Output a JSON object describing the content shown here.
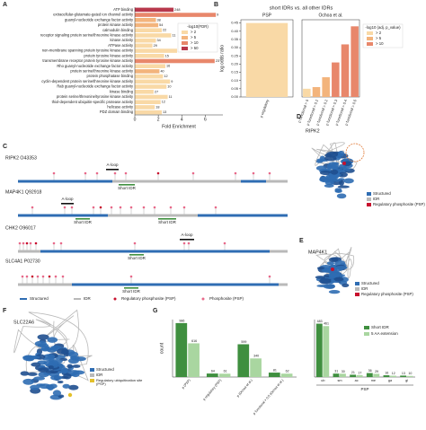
{
  "panel_labels": [
    "A",
    "B",
    "C",
    "D",
    "E",
    "F",
    "G"
  ],
  "chart_data": [
    {
      "type": "barh",
      "xlabel": "Fold Enrichment",
      "categories": [
        "ATP binding",
        "extracellular-glutamate-gated ion channel activity",
        "guanyl-nucleotide exchange factor activity",
        "protein kinase activity",
        "calmodulin binding",
        "receptor signaling protein serine/threonine kinase activity",
        "kinase activity",
        "ATPase activity",
        "non-membrane spanning protein tyrosine kinase activity",
        "protein tyrosine kinase activity",
        "transmembrane receptor protein tyrosine kinase activity",
        "Rho guanyl-nucleotide exchange factor activity",
        "protein serine/threonine kinase activity",
        "protein phosphatase binding",
        "cyclin-dependent protein serine/threonine kinase activity",
        "Rab guanyl-nucleotide exchange factor activity",
        "kinase binding",
        "protein serine/threonine/tyrosine kinase activity",
        "thiol-dependent ubiquitin-specific protease activity",
        "helicase activity",
        "PDZ domain binding"
      ],
      "values": [
        3.3,
        6.9,
        1.8,
        2.0,
        2.3,
        3.1,
        1.8,
        1.5,
        3.6,
        2.5,
        6.8,
        2.6,
        2.1,
        2.4,
        3.0,
        2.7,
        1.6,
        2.8,
        2.2,
        1.7,
        2.3
      ],
      "counts": [
        248,
        9,
        38,
        54,
        22,
        11,
        34,
        29,
        9,
        15,
        23,
        16,
        40,
        12,
        9,
        10,
        27,
        11,
        12,
        18,
        13
      ],
      "colors": [
        "#b8384c",
        "#e8876b",
        "#f3b47c",
        "#f3b47c",
        "#f9d9a6",
        "#f9d9a6",
        "#f9d9a6",
        "#f9d9a6",
        "#f9d9a6",
        "#f9d9a6",
        "#e8876b",
        "#f9d9a6",
        "#f3b47c",
        "#f9d9a6",
        "#f9d9a6",
        "#f9d9a6",
        "#f9d9a6",
        "#f9d9a6",
        "#f9d9a6",
        "#f9d9a6",
        "#f9d9a6"
      ],
      "xlim": [
        0,
        7.5
      ],
      "xticks": [
        0,
        2,
        4,
        6
      ],
      "legend": {
        "title": "-log10(FDR)",
        "labels": [
          "> 2",
          "> 5",
          "> 10",
          "> 50"
        ],
        "colors": [
          "#f9d9a6",
          "#f3b47c",
          "#e8876b",
          "#b8384c"
        ]
      }
    },
    {
      "type": "bar",
      "title": "short IDRs vs. all other IDRs",
      "ylabel": "log odds ratio",
      "ylim": [
        0,
        0.47
      ],
      "yticks": [
        {
          "value": 0,
          "label": "0.00"
        },
        {
          "value": 0.05,
          "label": "0.05"
        },
        {
          "value": 0.1,
          "label": "0.10"
        },
        {
          "value": 0.15,
          "label": "0.15"
        },
        {
          "value": 0.2,
          "label": "0.20"
        },
        {
          "value": 0.25,
          "label": "0.25"
        },
        {
          "value": 0.3,
          "label": "0.30"
        },
        {
          "value": 0.35,
          "label": "0.35"
        },
        {
          "value": 0.4,
          "label": "0.40"
        },
        {
          "value": 0.45,
          "label": "0.45"
        }
      ],
      "panels": [
        {
          "title": "PSP",
          "categories": [
            "p regulatory"
          ],
          "values": [
            0.45
          ],
          "colors": [
            "#f9d9a6"
          ]
        },
        {
          "title": "Ochoa et al.",
          "categories": [
            "p functional > 0",
            "p functional > 0.1",
            "p functional > 0.2",
            "p functional > 0.3",
            "p functional > 0.4",
            "p functional > 0.5"
          ],
          "values": [
            0.05,
            0.06,
            0.12,
            0.21,
            0.32,
            0.43
          ],
          "colors": [
            "#f9d9a6",
            "#f3b47c",
            "#f3b47c",
            "#e8876b",
            "#e8876b",
            "#e8876b"
          ]
        }
      ],
      "legend": {
        "title": "-log10 (adj. p_value)",
        "labels": [
          "> 2",
          "> 5",
          "> 10"
        ],
        "colors": [
          "#f9d9a6",
          "#f3b47c",
          "#e8876b"
        ]
      }
    },
    {
      "type": "grouped_bar",
      "ylabel": "count",
      "panels": [
        {
          "categories": [
            "p (PSP)",
            "p regulatory (PSP)",
            "p (Ochoa et al.)",
            "p functional > 0.5 (Ochoa et al.)"
          ],
          "ylim": [
            0,
            1050
          ],
          "series": [
            {
              "name": "Short IDR",
              "color": "#3f8f3f",
              "values": [
                986,
                64,
                599,
                81
              ]
            },
            {
              "name": "5 AA extension",
              "color": "#a9d6a0",
              "values": [
                616,
                61,
                340,
                62
              ]
            }
          ]
        },
        {
          "categories": [
            "ub",
            "sm",
            "ac",
            "me",
            "ga",
            "gl"
          ],
          "group_label": "PSP",
          "ylim": [
            0,
            520
          ],
          "legend": true,
          "series": [
            {
              "name": "Short IDR",
              "color": "#3f8f3f",
              "values": [
                483,
                31,
                21,
                36,
                16,
                13
              ]
            },
            {
              "name": "5 AA extension",
              "color": "#a9d6a0",
              "values": [
                461,
                30,
                17,
                29,
                12,
                10
              ]
            }
          ]
        }
      ]
    }
  ],
  "panel_c": {
    "proteins": [
      {
        "name": "RIPK2 O43353",
        "annotations": [
          "A-loop",
          "Short IDR"
        ]
      },
      {
        "name": "MAP4K1 Q92918",
        "annotations": [
          "A-loop",
          "Short IDR",
          "Short IDR"
        ]
      },
      {
        "name": "CHK2 O96017",
        "annotations": [
          "A-loop",
          "Short IDR"
        ]
      },
      {
        "name": "SLC4A1 P02730",
        "annotations": [
          "Short IDR"
        ]
      }
    ],
    "legend": [
      "Structured",
      "IDR",
      "Regulatory phosphosite (PSP)",
      "Phosphosite (PSP)"
    ]
  },
  "panel_d": {
    "title": "RIPK2",
    "legend": [
      "Structured",
      "IDR",
      "Regulatory phosphosite (PSP)"
    ]
  },
  "panel_e": {
    "title": "MAP4K1",
    "legend": [
      "Structured",
      "IDR",
      "Regulatory phosphosite (PSP)"
    ]
  },
  "panel_f": {
    "title": "SLC22A6",
    "legend": [
      "Structured",
      "IDR",
      "Regulatory ubiquitination site (PSP)"
    ]
  }
}
